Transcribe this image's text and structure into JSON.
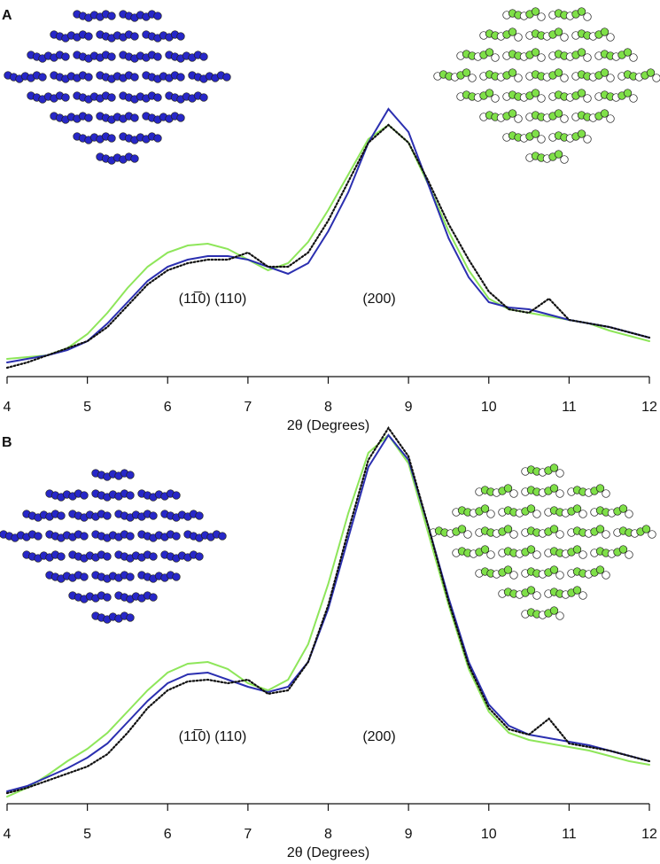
{
  "chart_data": [
    {
      "type": "line",
      "panel": "A",
      "xlabel": "2θ (Degrees)",
      "xlim": [
        4,
        12
      ],
      "xticks": [
        4,
        5,
        6,
        7,
        8,
        9,
        10,
        11,
        12
      ],
      "ylim": [
        0,
        100
      ],
      "annotations": [
        "(11̅0) (110)",
        "(200)"
      ],
      "x": [
        4,
        4.25,
        4.5,
        4.75,
        5,
        5.25,
        5.5,
        5.75,
        6,
        6.25,
        6.5,
        6.75,
        7,
        7.25,
        7.5,
        7.75,
        8,
        8.25,
        8.5,
        8.75,
        9,
        9.25,
        9.5,
        9.75,
        10,
        10.25,
        10.5,
        10.75,
        11,
        11.25,
        11.5,
        11.75,
        12
      ],
      "series": [
        {
          "color": "#8ee65a",
          "values": [
            5,
            5.5,
            6,
            8,
            12,
            18,
            25,
            31,
            35,
            37,
            37.5,
            36,
            33,
            30,
            32,
            38,
            47,
            57,
            67,
            71,
            66,
            54,
            41,
            30,
            22,
            19,
            18,
            17,
            16,
            15,
            13,
            11.5,
            10
          ]
        },
        {
          "color": "#2b2fb0",
          "values": [
            4,
            5,
            6,
            7.5,
            10,
            15,
            21,
            27,
            31,
            33,
            34,
            34,
            33,
            31,
            29,
            32,
            41,
            52,
            66,
            75.5,
            69,
            54,
            39,
            28,
            21,
            19.5,
            19,
            17.5,
            16,
            15,
            14,
            12.5,
            11
          ]
        },
        {
          "color": "#111111",
          "style": "dotted",
          "values": [
            2.5,
            4,
            6,
            8,
            10,
            14,
            20,
            26,
            30,
            32,
            33,
            33,
            35,
            31,
            31,
            35,
            44,
            55,
            66,
            71,
            66,
            55,
            43,
            33,
            24,
            19,
            18,
            22,
            16,
            15,
            14,
            12.5,
            11
          ]
        }
      ]
    },
    {
      "type": "line",
      "panel": "B",
      "xlabel": "2θ (Degrees)",
      "xlim": [
        4,
        12
      ],
      "xticks": [
        4,
        5,
        6,
        7,
        8,
        9,
        10,
        11,
        12
      ],
      "ylim": [
        0,
        110
      ],
      "annotations": [
        "(11̅0) (110)",
        "(200)"
      ],
      "x": [
        4,
        4.25,
        4.5,
        4.75,
        5,
        5.25,
        5.5,
        5.75,
        6,
        6.25,
        6.5,
        6.75,
        7,
        7.25,
        7.5,
        7.75,
        8,
        8.25,
        8.5,
        8.75,
        9,
        9.25,
        9.5,
        9.75,
        10,
        10.25,
        10.5,
        10.75,
        11,
        11.25,
        11.5,
        11.75,
        12
      ],
      "series": [
        {
          "color": "#8ee65a",
          "values": [
            2,
            4.5,
            8,
            12,
            15.5,
            20,
            26,
            32,
            37,
            39.5,
            40,
            38,
            34,
            32,
            35,
            45,
            62,
            82,
            99,
            104,
            96,
            76,
            56,
            38,
            26,
            20,
            18,
            17,
            16,
            15,
            13.5,
            12,
            11
          ]
        },
        {
          "color": "#2b2fb0",
          "values": [
            3.5,
            5,
            7.5,
            10,
            13,
            17,
            23,
            29,
            34,
            36.5,
            37,
            35,
            33,
            31.5,
            33,
            40,
            55,
            75,
            95,
            104,
            97,
            78,
            58,
            40,
            28,
            22,
            19.5,
            18.5,
            17.5,
            16.5,
            15,
            13.5,
            12
          ]
        },
        {
          "color": "#111111",
          "style": "dotted",
          "values": [
            3,
            4.5,
            6.5,
            8.5,
            10.5,
            14,
            20,
            27,
            32,
            34.5,
            35,
            34,
            35,
            31,
            32,
            40,
            56,
            77,
            97,
            106,
            98,
            78,
            57,
            39,
            27,
            21,
            19.5,
            24,
            17,
            16,
            15,
            13.5,
            12
          ]
        }
      ]
    }
  ]
}
